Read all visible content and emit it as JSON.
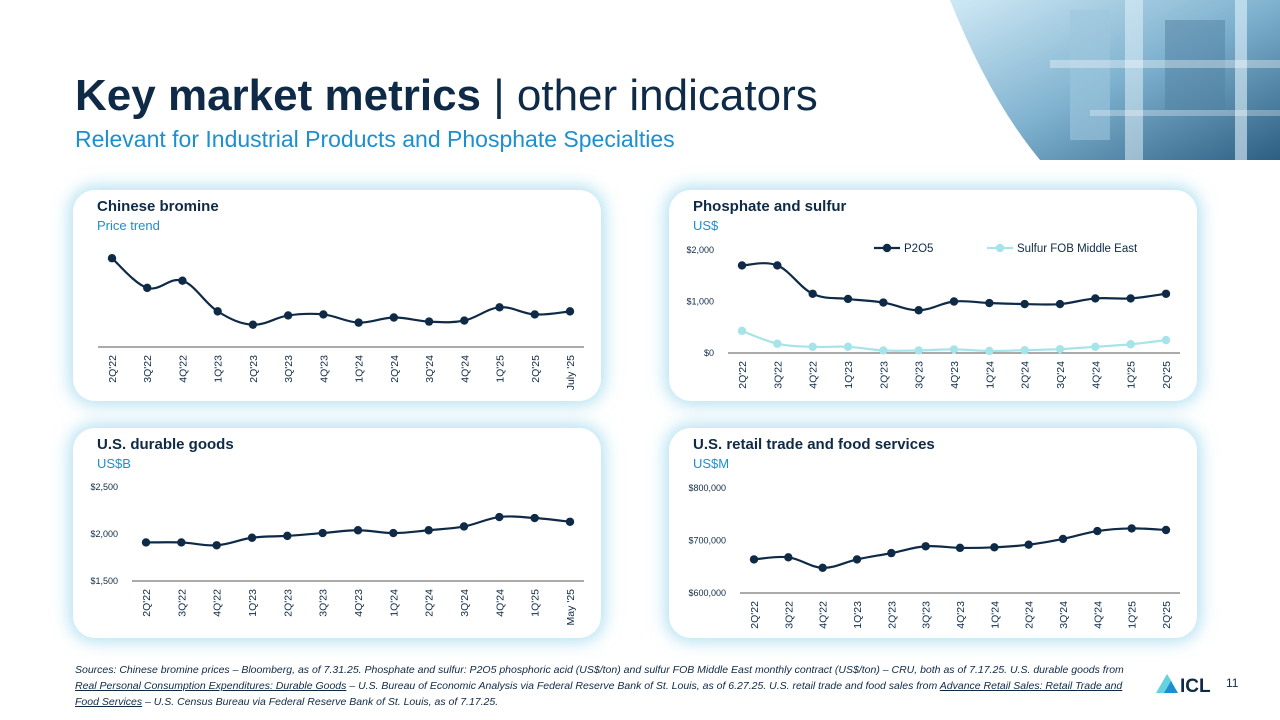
{
  "page": {
    "title_strong": "Key market metrics",
    "title_light": " | other indicators",
    "subtitle": "Relevant for Industrial Products and Phosphate Specialties",
    "page_number": "11",
    "logo_text": "ICL",
    "colors": {
      "navy": "#0e2a47",
      "accent_blue": "#1a8fd1",
      "light_series": "#a6e4ea"
    }
  },
  "sources": {
    "p1": "Sources: Chinese bromine prices – Bloomberg, as of 7.31.25. Phosphate and sulfur: P2O5 phosphoric acid (US$/ton) and sulfur FOB Middle East monthly contract (US$/ton) – CRU, both as of 7.17.25. U.S. durable goods from ",
    "link1": "Real Personal Consumption Expenditures: Durable Goods",
    "p2": " – U.S. Bureau of Economic Analysis via Federal Reserve Bank of St. Louis, as of 6.27.25. U.S. retail trade and food sales from ",
    "link2": "Advance Retail Sales: Retail Trade and Food Services",
    "p3": " – U.S. Census Bureau via Federal Reserve Bank of St. Louis, as of 7.17.25."
  },
  "chart_data": [
    {
      "type": "line",
      "title": "Chinese bromine",
      "subtitle": "Price trend",
      "categories": [
        "2Q'22",
        "3Q'22",
        "4Q'22",
        "1Q'23",
        "2Q'23",
        "3Q'23",
        "4Q'23",
        "1Q'24",
        "2Q'24",
        "3Q'24",
        "4Q'24",
        "1Q'25",
        "2Q'25",
        "July '25"
      ],
      "series": [
        {
          "values": [
            100,
            71,
            78,
            48,
            35,
            44,
            45,
            37,
            42,
            38,
            39,
            52,
            45,
            48
          ],
          "color": "#0e2a47"
        }
      ],
      "ylim": [
        20,
        110
      ],
      "y_ticks": [],
      "grid": false,
      "legend": null
    },
    {
      "type": "line",
      "title": "Phosphate and sulfur",
      "subtitle": "US$",
      "categories": [
        "2Q'22",
        "3Q'22",
        "4Q'22",
        "1Q'23",
        "2Q'23",
        "3Q'23",
        "4Q'23",
        "1Q'24",
        "2Q'24",
        "3Q'24",
        "4Q'24",
        "1Q'25",
        "2Q'25"
      ],
      "series": [
        {
          "name": "P2O5",
          "values": [
            1700,
            1700,
            1150,
            1050,
            980,
            830,
            1000,
            970,
            950,
            950,
            1060,
            1060,
            1150
          ],
          "color": "#0e2a47"
        },
        {
          "name": "Sulfur FOB Middle East",
          "values": [
            430,
            180,
            120,
            120,
            50,
            50,
            70,
            40,
            55,
            75,
            120,
            170,
            250
          ],
          "color": "#a6e4ea"
        }
      ],
      "ylim": [
        0,
        2000
      ],
      "y_ticks": [
        {
          "v": 0,
          "label": "$0"
        },
        {
          "v": 1000,
          "label": "$1,000"
        },
        {
          "v": 2000,
          "label": "$2,000"
        }
      ],
      "grid": false,
      "legend": "top"
    },
    {
      "type": "line",
      "title": "U.S. durable goods",
      "subtitle": "US$B",
      "categories": [
        "2Q'22",
        "3Q'22",
        "4Q'22",
        "1Q'23",
        "2Q'23",
        "3Q'23",
        "4Q'23",
        "1Q'24",
        "2Q'24",
        "3Q'24",
        "4Q'24",
        "1Q'25",
        "May '25"
      ],
      "series": [
        {
          "values": [
            1910,
            1910,
            1880,
            1960,
            1980,
            2010,
            2040,
            2010,
            2040,
            2080,
            2180,
            2170,
            2130
          ],
          "color": "#0e2a47"
        }
      ],
      "ylim": [
        1500,
        2500
      ],
      "y_ticks": [
        {
          "v": 1500,
          "label": "$1,500"
        },
        {
          "v": 2000,
          "label": "$2,000"
        },
        {
          "v": 2500,
          "label": "$2,500"
        }
      ],
      "grid": false,
      "legend": null
    },
    {
      "type": "line",
      "title": "U.S. retail trade and food services",
      "subtitle": "US$M",
      "categories": [
        "2Q'22",
        "3Q'22",
        "4Q'22",
        "1Q'23",
        "2Q'23",
        "3Q'23",
        "4Q'23",
        "1Q'24",
        "2Q'24",
        "3Q'24",
        "4Q'24",
        "1Q'25",
        "2Q'25"
      ],
      "series": [
        {
          "values": [
            664000,
            668000,
            648000,
            664000,
            676000,
            689000,
            686000,
            687000,
            692000,
            703000,
            718000,
            723000,
            720000
          ],
          "color": "#0e2a47"
        }
      ],
      "ylim": [
        600000,
        800000
      ],
      "y_ticks": [
        {
          "v": 600000,
          "label": "$600,000"
        },
        {
          "v": 700000,
          "label": "$700,000"
        },
        {
          "v": 800000,
          "label": "$800,000"
        }
      ],
      "grid": false,
      "legend": null
    }
  ]
}
